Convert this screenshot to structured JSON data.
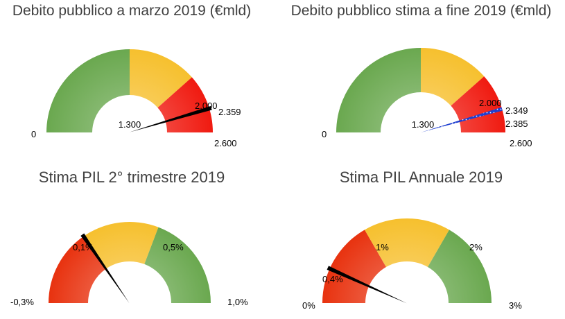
{
  "chart_data": [
    {
      "type": "gauge",
      "title": "Debito pubblico a marzo 2019 (€mld)",
      "scale": [
        0,
        2600
      ],
      "bands": [
        {
          "from": 0,
          "to": 1300,
          "color": "#6aa84f"
        },
        {
          "from": 1300,
          "to": 2000,
          "color": "#f6c02e"
        },
        {
          "from": 2000,
          "to": 2600,
          "color": "#f01a10"
        }
      ],
      "tick_labels": [
        "0",
        "1.300",
        "2.000",
        "2.600"
      ],
      "tick_values": [
        0,
        1300,
        2000,
        2600
      ],
      "value": 2359,
      "value_label": "2.359"
    },
    {
      "type": "gauge",
      "title": "Debito pubblico stima a fine 2019 (€mld)",
      "scale": [
        0,
        2600
      ],
      "bands": [
        {
          "from": 0,
          "to": 1300,
          "color": "#6aa84f"
        },
        {
          "from": 1300,
          "to": 2000,
          "color": "#f6c02e"
        },
        {
          "from": 2000,
          "to": 2600,
          "color": "#f01a10"
        }
      ],
      "tick_labels": [
        "0",
        "1.300",
        "2.000",
        "2.600"
      ],
      "tick_values": [
        0,
        1300,
        2000,
        2600
      ],
      "range": [
        2349,
        2385
      ],
      "range_labels": [
        "2.349",
        "2.385"
      ],
      "range_color": "#1f3fd0"
    },
    {
      "type": "gauge",
      "title": "Stima PIL 2° trimestre 2019",
      "scale": [
        -0.3,
        1.0
      ],
      "bands": [
        {
          "from": -0.3,
          "to": 0.1,
          "color": "#e8320f"
        },
        {
          "from": 0.1,
          "to": 0.5,
          "color": "#f6c02e"
        },
        {
          "from": 0.5,
          "to": 1.0,
          "color": "#6aa84f"
        }
      ],
      "tick_labels": [
        "-0,3%",
        "0,1%",
        "0,5%",
        "1,0%"
      ],
      "tick_values": [
        -0.3,
        0.1,
        0.5,
        1.0
      ],
      "value": 0.1
    },
    {
      "type": "gauge",
      "title": "Stima PIL Annuale 2019",
      "scale": [
        0,
        3
      ],
      "bands": [
        {
          "from": 0,
          "to": 1,
          "color": "#e8320f"
        },
        {
          "from": 1,
          "to": 2,
          "color": "#f6c02e"
        },
        {
          "from": 2,
          "to": 3,
          "color": "#6aa84f"
        }
      ],
      "tick_labels": [
        "0%",
        "1%",
        "2%",
        "3%"
      ],
      "tick_values": [
        0,
        1,
        2,
        3
      ],
      "value": 0.4,
      "value_label": "0,4%"
    }
  ]
}
